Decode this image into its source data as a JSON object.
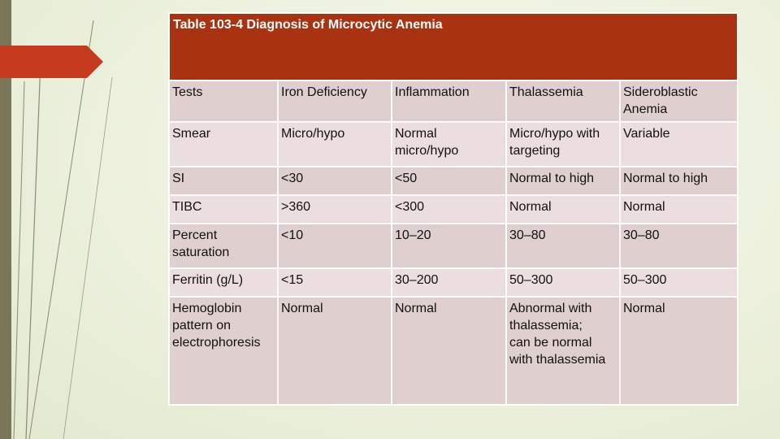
{
  "colors": {
    "title_bar": "#a93211",
    "row_light": "#ecdede",
    "row_dark": "#e0cfcf",
    "accent_tab": "#c63a1f",
    "left_bar": "#7a7657"
  },
  "table": {
    "title": "Table 103-4 Diagnosis of Microcytic Anemia",
    "header": [
      "Tests",
      "Iron Deficiency",
      "Inflammation",
      "Thalassemia",
      "Sideroblastic Anemia"
    ],
    "rows": [
      [
        "Smear",
        "Micro/hypo",
        "Normal micro/hypo",
        "Micro/hypo with targeting",
        "Variable"
      ],
      [
        "SI",
        "<30",
        "<50",
        "Normal to high",
        "Normal to high"
      ],
      [
        "TIBC",
        ">360",
        "<300",
        "Normal",
        "Normal"
      ],
      [
        "Percent saturation",
        "<10",
        "10–20",
        "30–80",
        "30–80"
      ],
      [
        "Ferritin (g/L)",
        "<15",
        "30–200",
        "50–300",
        "50–300"
      ],
      [
        "Hemoglobin pattern on electrophoresis",
        "Normal",
        "Normal",
        "Abnormal with\n thalassemia;\ncan be normal\nwith thalassemia",
        "Normal"
      ]
    ]
  }
}
